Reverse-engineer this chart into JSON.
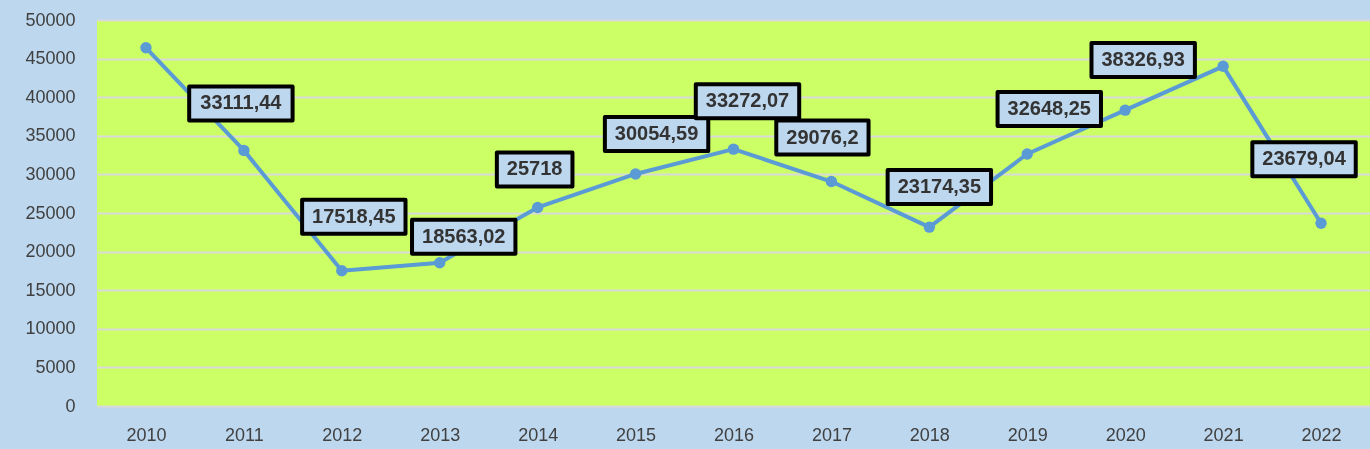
{
  "chart_data": {
    "type": "line",
    "categories": [
      "2010",
      "2011",
      "2012",
      "2013",
      "2014",
      "2015",
      "2016",
      "2017",
      "2018",
      "2019",
      "2020",
      "2021",
      "2022"
    ],
    "series": [
      {
        "color": "#5b9bd5",
        "values": [
          46400,
          33111.44,
          17518.45,
          18563.02,
          25718,
          30054.59,
          33272.07,
          29076.2,
          23174.35,
          32648.25,
          38326.93,
          44000,
          23679.04
        ],
        "value_labels": [
          null,
          "33111,44",
          "17518,45",
          "18563,02",
          "25718",
          "30054,59",
          "33272,07",
          "29076,2",
          "23174,35",
          "32648,25",
          "38326,93",
          null,
          "23679,04"
        ]
      }
    ],
    "ylim": [
      0,
      50000
    ],
    "yticks": [
      0,
      5000,
      10000,
      15000,
      20000,
      25000,
      30000,
      35000,
      40000,
      45000,
      50000
    ],
    "grid": "y",
    "marker": "circle",
    "line_style": "solid"
  }
}
